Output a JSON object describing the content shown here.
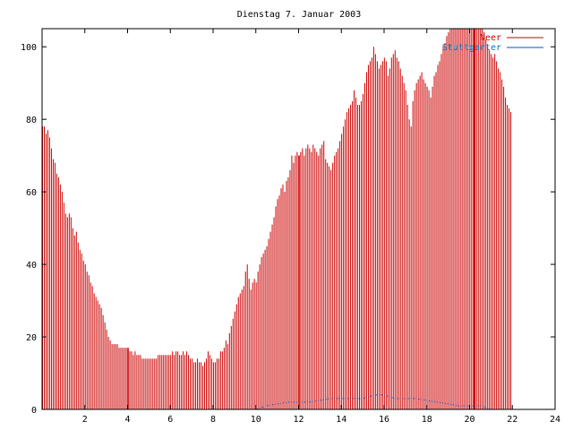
{
  "chart_data": {
    "type": "bar",
    "title": "Dienstag 7. Januar 2003",
    "xlabel": "",
    "ylabel": "",
    "xlim": [
      0,
      24
    ],
    "ylim": [
      0,
      105
    ],
    "x_ticks": [
      2,
      4,
      6,
      8,
      10,
      12,
      14,
      16,
      18,
      20,
      22,
      24
    ],
    "y_ticks": [
      0,
      20,
      40,
      60,
      80,
      100
    ],
    "grid": false,
    "legend_position": "top-right",
    "interval_hours": 0.0833,
    "series": [
      {
        "name": "Neer",
        "color": "#cc0000",
        "style": "impulses",
        "values": [
          78,
          78,
          76,
          77,
          75,
          72,
          69,
          68,
          65,
          64,
          62,
          60,
          57,
          54,
          53,
          54,
          53,
          50,
          48,
          49,
          46,
          44,
          43,
          41,
          40,
          38,
          37,
          35,
          34,
          32,
          31,
          30,
          29,
          28,
          26,
          24,
          22,
          20,
          19,
          18,
          18,
          18,
          18,
          17,
          17,
          17,
          17,
          17,
          16,
          16,
          16,
          15,
          16,
          15,
          15,
          15,
          14,
          14,
          14,
          14,
          14,
          14,
          14,
          14,
          14,
          15,
          15,
          15,
          15,
          15,
          15,
          15,
          15,
          16,
          15,
          16,
          16,
          15,
          15,
          16,
          15,
          16,
          15,
          14,
          14,
          13,
          13,
          14,
          13,
          13,
          12,
          13,
          14,
          16,
          15,
          14,
          13,
          13,
          14,
          14,
          16,
          16,
          17,
          19,
          18,
          21,
          23,
          25,
          27,
          29,
          31,
          32,
          33,
          34,
          38,
          40,
          36,
          33,
          35,
          36,
          35,
          38,
          40,
          42,
          43,
          44,
          45,
          47,
          49,
          51,
          53,
          56,
          58,
          59,
          61,
          62,
          60,
          63,
          64,
          66,
          70,
          68,
          70,
          71,
          70,
          71,
          72,
          70,
          72,
          73,
          72,
          71,
          73,
          72,
          71,
          70,
          72,
          73,
          74,
          69,
          68,
          67,
          66,
          68,
          70,
          71,
          72,
          74,
          76,
          78,
          80,
          82,
          83,
          84,
          85,
          88,
          86,
          84,
          84,
          85,
          87,
          90,
          93,
          95,
          96,
          97,
          100,
          98,
          96,
          94,
          95,
          96,
          97,
          96,
          92,
          94,
          97,
          98,
          99,
          97,
          96,
          94,
          92,
          90,
          88,
          84,
          80,
          78,
          85,
          88,
          90,
          91,
          92,
          93,
          91,
          90,
          89,
          88,
          86,
          89,
          92,
          93,
          95,
          96,
          98,
          100,
          101,
          103,
          104,
          105,
          105,
          105,
          105,
          105,
          105,
          105,
          105,
          105,
          105,
          105,
          105,
          105,
          105,
          105,
          105,
          105,
          105,
          105,
          104,
          102,
          100,
          99,
          98,
          97,
          98,
          96,
          94,
          93,
          91,
          89,
          86,
          84,
          83,
          82
        ],
        "spikes": [
          {
            "x": 4.0,
            "value": 17
          },
          {
            "x": 12.0,
            "value": 70
          },
          {
            "x": 20.2,
            "value": 105
          }
        ]
      },
      {
        "name": "Stuttgarter",
        "color": "#0055cc",
        "style": "dotted-line",
        "points": [
          [
            0,
            0
          ],
          [
            10.0,
            0
          ],
          [
            10.5,
            1
          ],
          [
            11.0,
            1.5
          ],
          [
            11.5,
            2
          ],
          [
            12.0,
            2
          ],
          [
            12.5,
            2
          ],
          [
            13.0,
            2.5
          ],
          [
            13.5,
            3
          ],
          [
            14.0,
            3
          ],
          [
            14.5,
            3
          ],
          [
            15.0,
            3
          ],
          [
            15.3,
            3.5
          ],
          [
            15.6,
            4
          ],
          [
            16.0,
            4
          ],
          [
            16.5,
            3
          ],
          [
            17.0,
            3
          ],
          [
            17.5,
            3
          ],
          [
            18.0,
            2.5
          ],
          [
            18.5,
            2
          ],
          [
            19.0,
            1.5
          ],
          [
            19.5,
            1
          ],
          [
            20.0,
            1
          ],
          [
            20.5,
            1
          ],
          [
            21.0,
            0
          ],
          [
            24,
            0
          ]
        ]
      }
    ]
  }
}
